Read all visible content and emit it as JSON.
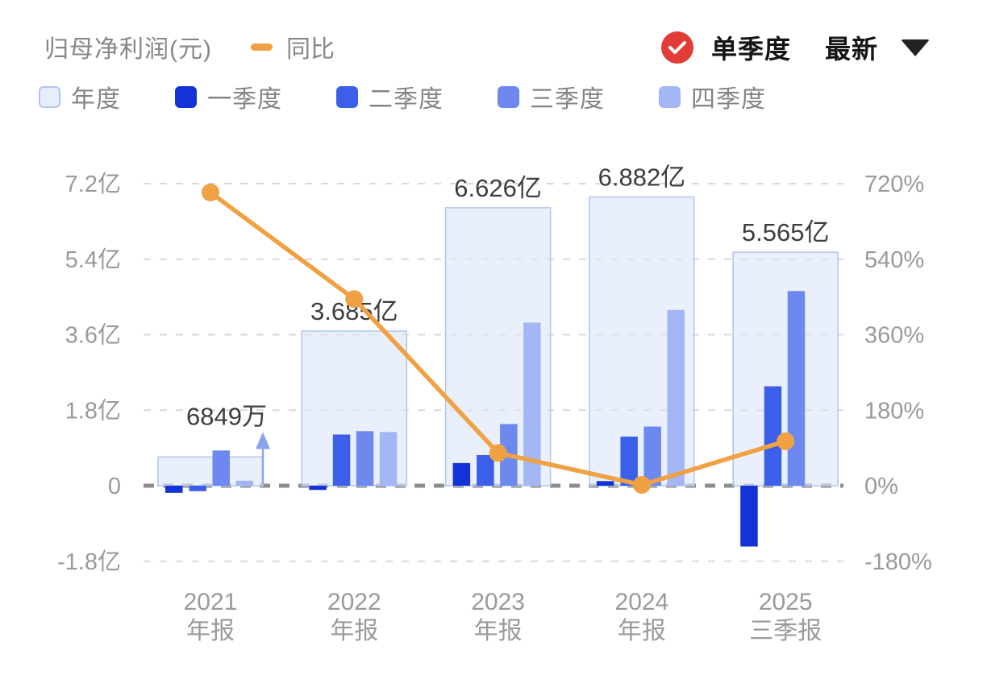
{
  "header": {
    "title": "归母净利润(元)",
    "yoy_legend_label": "同比",
    "mode_label": "单季度",
    "latest_label": "最新",
    "badge_color": "#e23c38",
    "line_color": "#efa143"
  },
  "legend": {
    "items": [
      {
        "label": "年度",
        "color": "#e7eefb",
        "border": "#b3c4ea"
      },
      {
        "label": "一季度",
        "color": "#1433d6",
        "border": "#1433d6"
      },
      {
        "label": "二季度",
        "color": "#3b5fe8",
        "border": "#3b5fe8"
      },
      {
        "label": "三季度",
        "color": "#6d89ef",
        "border": "#6d89ef"
      },
      {
        "label": "四季度",
        "color": "#a2b7f4",
        "border": "#a2b7f4"
      }
    ]
  },
  "chart_data": {
    "type": "bar",
    "subtype": "grouped annual/quarterly bars with YoY line on secondary axis",
    "title": "归母净利润(元)",
    "legend_position": "top",
    "grid": true,
    "left_axis": {
      "unit": "亿",
      "ticks": [
        "7.2亿",
        "5.4亿",
        "3.6亿",
        "1.8亿",
        "0",
        "-1.8亿"
      ],
      "values": [
        7.2,
        5.4,
        3.6,
        1.8,
        0,
        -1.8
      ],
      "range": [
        -1.8,
        7.2
      ]
    },
    "right_axis": {
      "unit": "%",
      "ticks": [
        "720%",
        "540%",
        "360%",
        "180%",
        "0%",
        "-180%"
      ],
      "values": [
        720,
        540,
        360,
        180,
        0,
        -180
      ],
      "range": [
        -180,
        720
      ]
    },
    "categories": [
      "2021 年报",
      "2022 年报",
      "2023 年报",
      "2024 年报",
      "2025 三季报"
    ],
    "groups": [
      {
        "x_line1": "2021",
        "x_line2": "年报",
        "annual": {
          "label": "6849万",
          "value_yi": 0.6849,
          "arrow_marker": true
        },
        "quarters": [
          {
            "name": "一季度",
            "value_yi": -0.17
          },
          {
            "name": "二季度",
            "value_yi": -0.13
          },
          {
            "name": "三季度",
            "value_yi": 0.84
          },
          {
            "name": "四季度",
            "value_yi": 0.12
          }
        ],
        "yoy_pct": 699
      },
      {
        "x_line1": "2022",
        "x_line2": "年报",
        "annual": {
          "label": "3.685亿",
          "value_yi": 3.685,
          "arrow_marker": false
        },
        "quarters": [
          {
            "name": "一季度",
            "value_yi": -0.1
          },
          {
            "name": "二季度",
            "value_yi": 1.22
          },
          {
            "name": "三季度",
            "value_yi": 1.3
          },
          {
            "name": "四季度",
            "value_yi": 1.28
          }
        ],
        "yoy_pct": 445
      },
      {
        "x_line1": "2023",
        "x_line2": "年报",
        "annual": {
          "label": "6.626亿",
          "value_yi": 6.626,
          "arrow_marker": false
        },
        "quarters": [
          {
            "name": "一季度",
            "value_yi": 0.54
          },
          {
            "name": "二季度",
            "value_yi": 0.73
          },
          {
            "name": "三季度",
            "value_yi": 1.47
          },
          {
            "name": "四季度",
            "value_yi": 3.89
          }
        ],
        "yoy_pct": 78
      },
      {
        "x_line1": "2024",
        "x_line2": "年报",
        "annual": {
          "label": "6.882亿",
          "value_yi": 6.882,
          "arrow_marker": false
        },
        "quarters": [
          {
            "name": "一季度",
            "value_yi": 0.11
          },
          {
            "name": "二季度",
            "value_yi": 1.17
          },
          {
            "name": "三季度",
            "value_yi": 1.41
          },
          {
            "name": "四季度",
            "value_yi": 4.19
          }
        ],
        "yoy_pct": 2
      },
      {
        "x_line1": "2025",
        "x_line2": "三季报",
        "annual": {
          "label": "5.565亿",
          "value_yi": 5.565,
          "arrow_marker": false
        },
        "quarters": [
          {
            "name": "一季度",
            "value_yi": -1.45
          },
          {
            "name": "二季度",
            "value_yi": 2.37
          },
          {
            "name": "三季度",
            "value_yi": 4.64
          }
        ],
        "yoy_pct": 106
      }
    ],
    "yoy_series": {
      "name": "同比",
      "values_pct": [
        699,
        445,
        78,
        2,
        106
      ],
      "color": "#efa143"
    },
    "colors": {
      "annual_fill": "#dde7f9",
      "annual_border": "#b7c6ec",
      "q1": "#1433d6",
      "q2": "#3b5fe8",
      "q3": "#6d89ef",
      "q4": "#a2b7f4",
      "gridline": "#d9d9d9",
      "zero_line": "#8d8d8d",
      "axis_text": "#9a9a9a",
      "value_label": "#3d3d3d",
      "arrow_marker": "#8ca2ef"
    }
  }
}
